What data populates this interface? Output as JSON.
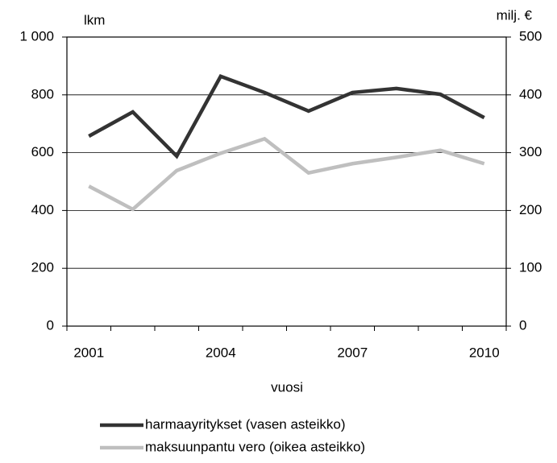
{
  "chart_data": {
    "type": "line",
    "y_label": "lkm",
    "y2_label": "milj. €",
    "x_label": "vuosi",
    "categories": [
      "2001",
      null,
      null,
      "2004",
      null,
      null,
      "2007",
      null,
      null,
      "2010"
    ],
    "series": [
      {
        "name": "harmaayritykset (vasen asteikko)",
        "color": "#333333",
        "axis": "y",
        "values": [
          657,
          741,
          588,
          864,
          808,
          744,
          808,
          822,
          802,
          721
        ]
      },
      {
        "name": "maksuunpantu vero (oikea asteikko)",
        "color": "#bfbfbf",
        "axis": "y2",
        "values": [
          242,
          202,
          269,
          299,
          324,
          265,
          281,
          292,
          304,
          281
        ]
      }
    ],
    "ylim": [
      0,
      1000
    ],
    "yticks": [
      0,
      200,
      400,
      600,
      800,
      {
        "value": 1000,
        "label": "1 000"
      }
    ],
    "y2lim": [
      0,
      500
    ],
    "y2ticks": [
      0,
      100,
      200,
      300,
      400,
      500
    ],
    "grid": true,
    "legend": "bottom"
  }
}
